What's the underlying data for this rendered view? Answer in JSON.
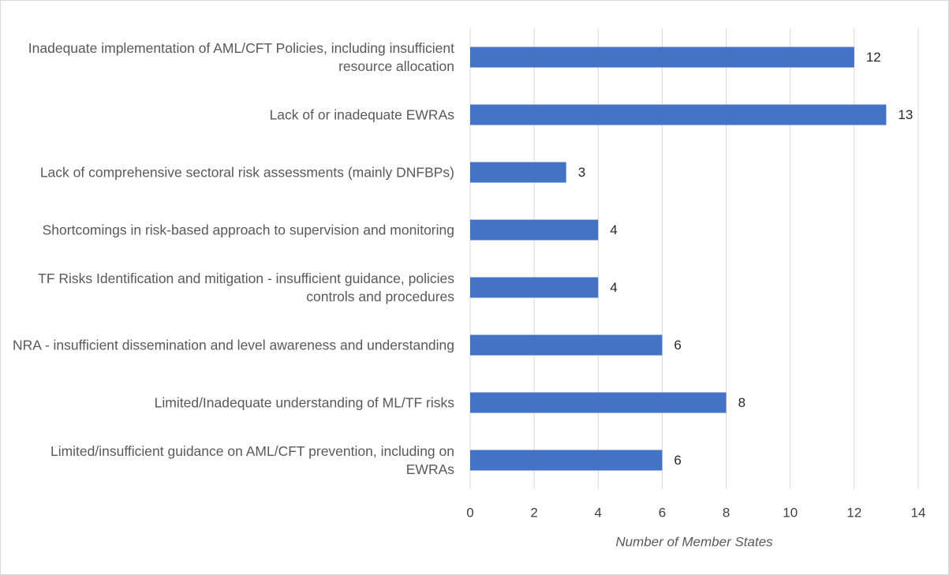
{
  "chart_data": {
    "type": "barh",
    "x_label": "Number of Member States",
    "categories": [
      "Inadequate implementation of AML/CFT Policies, including insufficient resource allocation",
      "Lack of or inadequate EWRAs",
      "Lack of comprehensive sectoral risk assessments (mainly DNFBPs)",
      "Shortcomings in risk-based approach to supervision and monitoring",
      "TF Risks Identification and mitigation - insufficient guidance, policies controls and procedures",
      "NRA - insufficient dissemination and level awareness and understanding",
      "Limited/Inadequate understanding of ML/TF risks",
      "Limited/insufficient guidance on AML/CFT prevention, including on EWRAs"
    ],
    "values": [
      12,
      13,
      3,
      4,
      4,
      6,
      8,
      6
    ],
    "color": "#4472c4",
    "xlim": [
      0,
      14
    ],
    "xticks": [
      0,
      2,
      4,
      6,
      8,
      10,
      12,
      14
    ],
    "grid": true
  }
}
